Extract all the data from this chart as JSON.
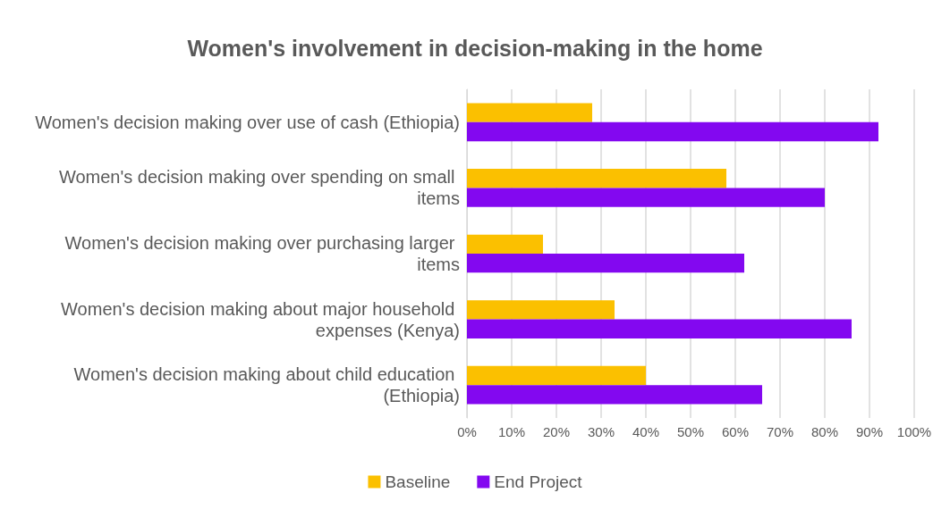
{
  "chart_data": {
    "type": "bar",
    "orientation": "horizontal",
    "title": "Women's involvement in decision-making in the home",
    "categories": [
      "Women's decision making over use of cash (Ethiopia)",
      "Women's decision making over spending on small items",
      "Women's decision making over purchasing larger items",
      "Women's decision making about major household expenses (Kenya)",
      "Women's decision making about child education (Ethiopia)"
    ],
    "series": [
      {
        "name": "Baseline",
        "color": "#fbc000",
        "values": [
          28,
          58,
          17,
          33,
          40
        ]
      },
      {
        "name": "End Project",
        "color": "#8308f0",
        "values": [
          92,
          80,
          62,
          86,
          66
        ]
      }
    ],
    "xlim": [
      0,
      100
    ],
    "xticks": [
      {
        "value": 0,
        "label": "0%"
      },
      {
        "value": 10,
        "label": "10%"
      },
      {
        "value": 20,
        "label": "20%"
      },
      {
        "value": 30,
        "label": "30%"
      },
      {
        "value": 40,
        "label": "40%"
      },
      {
        "value": 50,
        "label": "50%"
      },
      {
        "value": 60,
        "label": "60%"
      },
      {
        "value": 70,
        "label": "70%"
      },
      {
        "value": 80,
        "label": "80%"
      },
      {
        "value": 90,
        "label": "90%"
      },
      {
        "value": 100,
        "label": "100%"
      }
    ],
    "grid": "x",
    "legend": "bottom"
  }
}
